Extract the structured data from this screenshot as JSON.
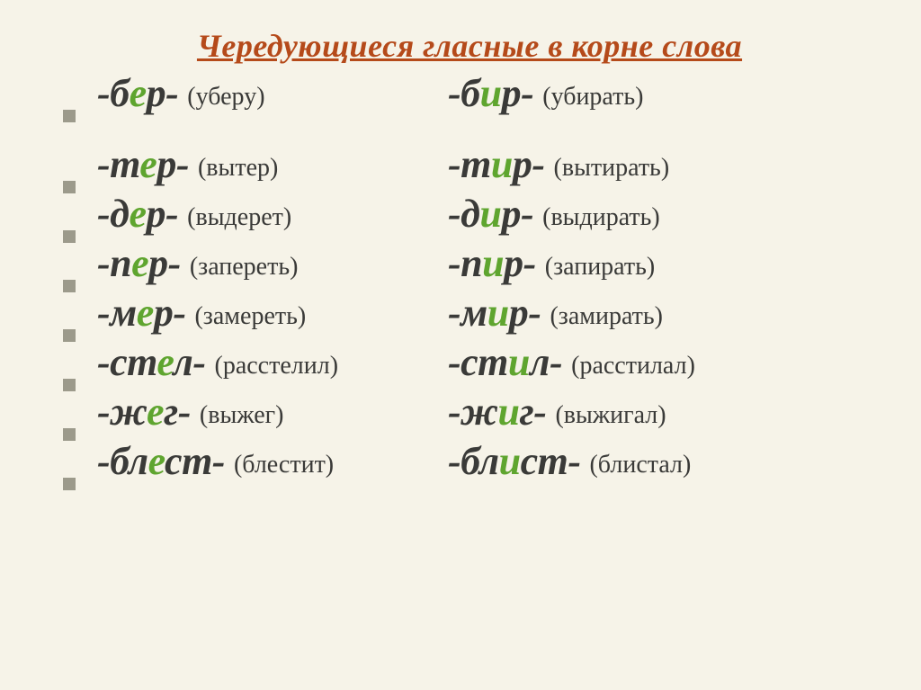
{
  "title": "Чередующиеся гласные в корне слова",
  "rows": [
    {
      "left_pre": "-б",
      "left_vowel": "е",
      "left_post": "р-",
      "left_example": "(уберу)",
      "right_pre": "-б",
      "right_vowel": "и",
      "right_post": "р-",
      "right_example": "(убирать)"
    },
    {
      "left_pre": "-т",
      "left_vowel": "е",
      "left_post": "р-",
      "left_example": "(вытер)",
      "right_pre": "-т",
      "right_vowel": "и",
      "right_post": "р-",
      "right_example": "(вытирать)"
    },
    {
      "left_pre": "-д",
      "left_vowel": "е",
      "left_post": "р-",
      "left_example": "(выдерет)",
      "right_pre": "-д",
      "right_vowel": "и",
      "right_post": "р-",
      "right_example": "(выдирать)"
    },
    {
      "left_pre": "-п",
      "left_vowel": "е",
      "left_post": "р-",
      "left_example": "(запереть)",
      "right_pre": "-п",
      "right_vowel": "и",
      "right_post": "р-",
      "right_example": "(запирать)"
    },
    {
      "left_pre": "-м",
      "left_vowel": "е",
      "left_post": "р-",
      "left_example": "(замереть)",
      "right_pre": "-м",
      "right_vowel": "и",
      "right_post": "р-",
      "right_example": "(замирать)"
    },
    {
      "left_pre": "-ст",
      "left_vowel": "е",
      "left_post": "л-",
      "left_example": "(расстелил)",
      "right_pre": "-ст",
      "right_vowel": "и",
      "right_post": "л-",
      "right_example": "(расстилал)"
    },
    {
      "left_pre": "-ж",
      "left_vowel": "е",
      "left_post": "г-",
      "left_example": "(выжег)",
      "right_pre": "-ж",
      "right_vowel": "и",
      "right_post": "г-",
      "right_example": "(выжигал)"
    },
    {
      "left_pre": "-бл",
      "left_vowel": "е",
      "left_post": "ст-",
      "left_example": "(блестит)",
      "right_pre": "-бл",
      "right_vowel": "и",
      "right_post": "ст-",
      "right_example": "(блистал)"
    }
  ]
}
